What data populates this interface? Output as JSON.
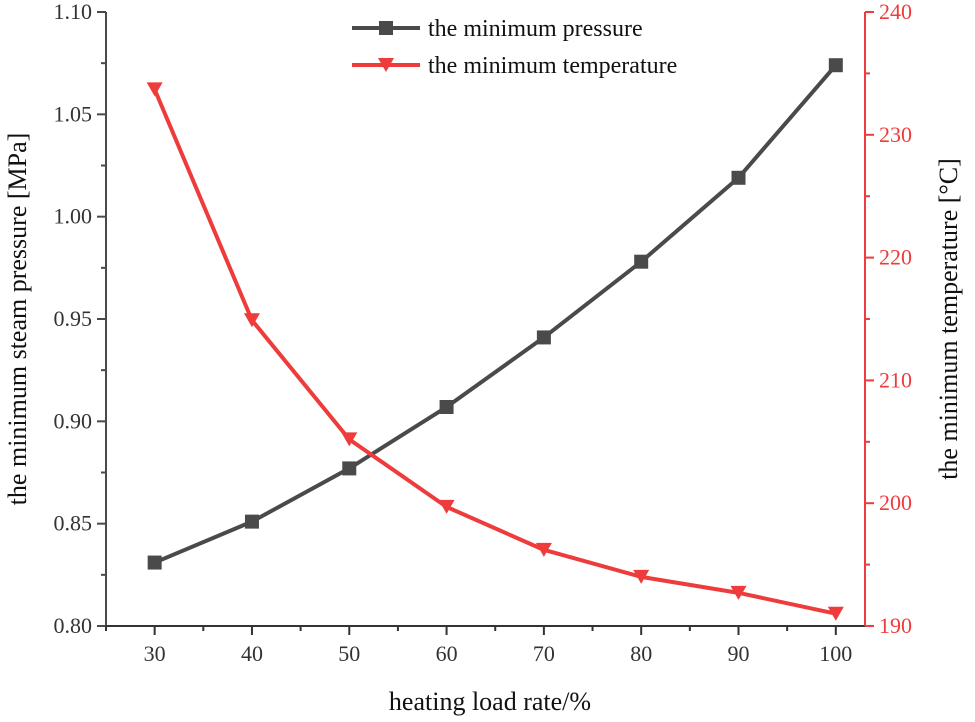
{
  "chart_data": {
    "type": "line",
    "xlabel": "heating load rate/%",
    "ylabel": "the minimum steam pressure [MPa]",
    "y2label": "the minimum temperature [°C]",
    "x": [
      30,
      40,
      50,
      60,
      70,
      80,
      90,
      100
    ],
    "x_ticks": [
      "30",
      "40",
      "50",
      "60",
      "70",
      "80",
      "90",
      "100"
    ],
    "xlim": [
      25,
      103
    ],
    "ylim": [
      0.8,
      1.1
    ],
    "y_ticks": [
      "0.80",
      "0.85",
      "0.90",
      "0.95",
      "1.00",
      "1.05",
      "1.10"
    ],
    "y2lim": [
      190,
      240
    ],
    "y2_ticks": [
      "190",
      "200",
      "210",
      "220",
      "230",
      "240"
    ],
    "legend_position": "top-center",
    "series": [
      {
        "name": "the minimum pressure",
        "axis": "left",
        "marker": "square",
        "color": "#4a4a4a",
        "values": [
          0.831,
          0.851,
          0.877,
          0.907,
          0.941,
          0.978,
          1.019,
          1.074
        ]
      },
      {
        "name": "the minimum temperature",
        "axis": "right",
        "marker": "triangle-down",
        "color": "#ee3b3b",
        "values": [
          233.7,
          214.9,
          205.2,
          199.7,
          196.2,
          194.0,
          192.7,
          191.0
        ]
      }
    ]
  }
}
